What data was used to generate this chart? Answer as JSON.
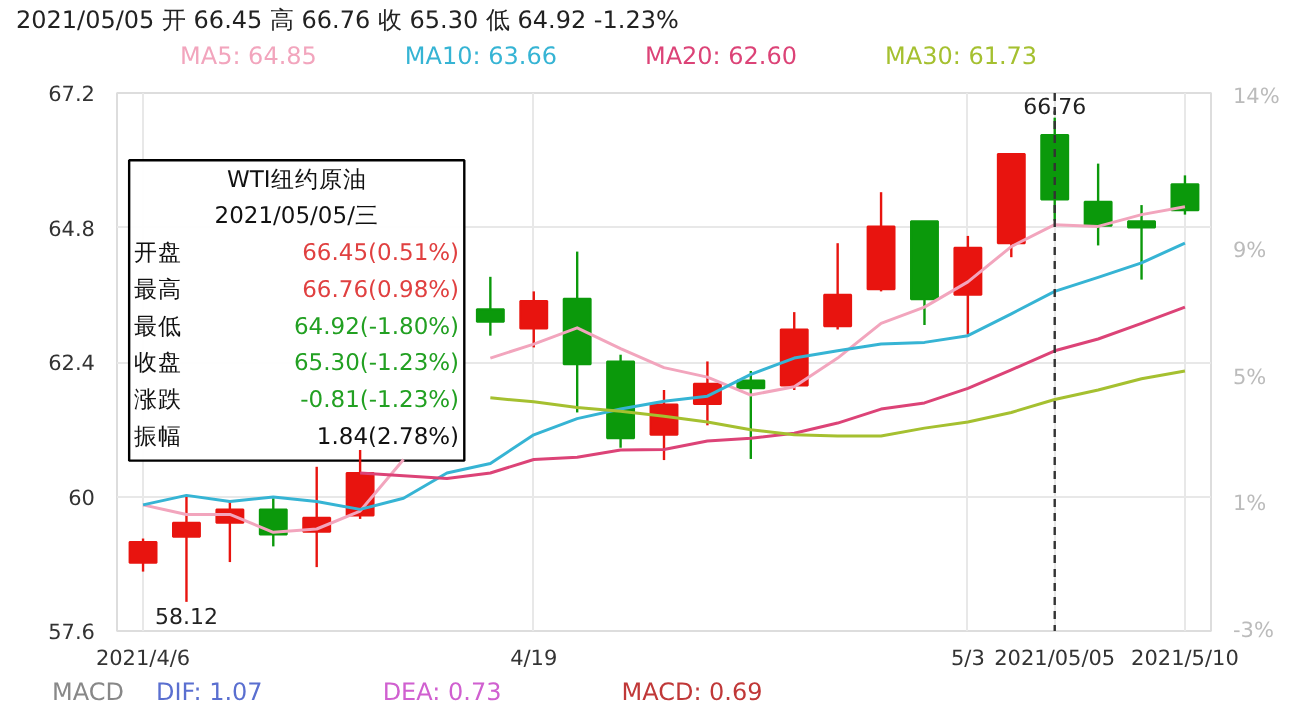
{
  "chart_data": {
    "type": "candlestick",
    "title": "2021/05/05 开 66.45 高 66.76 收 65.30 低 64.92 -1.23%",
    "categories": [
      "2021/4/6",
      null,
      null,
      null,
      null,
      null,
      null,
      null,
      null,
      "4/19",
      null,
      null,
      null,
      null,
      null,
      null,
      null,
      null,
      null,
      "5/3",
      null,
      "2021/05/05",
      null,
      null,
      "2021/5/10"
    ],
    "ohlc": [
      [
        58.82,
        59.25,
        58.66,
        59.19
      ],
      [
        59.28,
        60.02,
        58.12,
        59.53
      ],
      [
        59.53,
        59.91,
        58.83,
        59.77
      ],
      [
        59.77,
        59.97,
        59.11,
        59.32
      ],
      [
        59.37,
        60.53,
        58.74,
        59.62
      ],
      [
        59.66,
        60.83,
        59.6,
        60.42
      ],
      null,
      null,
      [
        63.34,
        63.92,
        62.87,
        63.12
      ],
      [
        63.0,
        63.66,
        62.66,
        63.49
      ],
      [
        63.53,
        64.37,
        61.5,
        62.36
      ],
      [
        62.41,
        62.53,
        60.87,
        61.04
      ],
      [
        61.1,
        61.9,
        60.65,
        61.64
      ],
      [
        61.65,
        62.41,
        61.27,
        62.01
      ],
      [
        62.07,
        62.24,
        60.67,
        61.93
      ],
      [
        61.98,
        63.29,
        61.9,
        62.98
      ],
      [
        63.04,
        64.52,
        62.98,
        63.6
      ],
      [
        63.7,
        65.43,
        63.66,
        64.82
      ],
      [
        64.91,
        64.91,
        63.06,
        63.52
      ],
      [
        63.6,
        64.65,
        62.89,
        64.44
      ],
      [
        64.52,
        66.11,
        64.27,
        66.11
      ],
      [
        66.45,
        66.76,
        64.92,
        65.3
      ],
      [
        65.26,
        65.94,
        64.48,
        64.83
      ],
      [
        64.91,
        65.2,
        63.87,
        64.8
      ],
      [
        65.57,
        65.73,
        65.03,
        65.11
      ]
    ],
    "colors": [
      "#e8140f",
      "#e8140f",
      "#e8140f",
      "#0b990b",
      "#e8140f",
      "#e8140f",
      "#e8140f",
      "#e8140f",
      "#0b990b",
      "#e8140f",
      "#0b990b",
      "#0b990b",
      "#e8140f",
      "#e8140f",
      "#0b990b",
      "#e8140f",
      "#e8140f",
      "#e8140f",
      "#0b990b",
      "#e8140f",
      "#e8140f",
      "#0b990b",
      "#0b990b",
      "#0b990b",
      "#0b990b"
    ],
    "series": [
      {
        "name": "MA5: 64.85",
        "type": "line",
        "color": "#f2a5bd",
        "values": [
          59.85,
          59.68,
          59.68,
          59.36,
          59.42,
          59.74,
          60.66,
          null,
          62.47,
          62.72,
          63.01,
          62.64,
          62.3,
          62.13,
          61.81,
          61.96,
          62.47,
          63.09,
          63.38,
          63.83,
          64.46,
          64.85,
          64.82,
          65.03,
          65.17
        ]
      },
      {
        "name": "MA10: 63.66",
        "type": "line",
        "color": "#36b4d4",
        "values": [
          59.85,
          60.02,
          59.91,
          59.99,
          59.91,
          59.77,
          59.97,
          60.42,
          60.59,
          61.1,
          61.39,
          61.56,
          61.7,
          61.79,
          62.18,
          62.47,
          62.6,
          62.72,
          62.75,
          62.87,
          63.26,
          63.66,
          63.91,
          64.17,
          64.52
        ]
      },
      {
        "name": "MA20: 62.60",
        "type": "line",
        "color": "#dc4377",
        "values": [
          null,
          null,
          null,
          null,
          null,
          60.42,
          60.37,
          60.32,
          60.42,
          60.66,
          60.7,
          60.83,
          60.84,
          60.99,
          61.04,
          61.13,
          61.31,
          61.56,
          61.67,
          61.93,
          62.26,
          62.6,
          62.81,
          63.09,
          63.38
        ]
      },
      {
        "name": "MA30: 61.73",
        "type": "line",
        "color": "#a5c030",
        "values": [
          null,
          null,
          null,
          null,
          null,
          null,
          null,
          null,
          61.76,
          61.69,
          61.59,
          61.52,
          61.43,
          61.33,
          61.19,
          61.1,
          61.08,
          61.08,
          61.22,
          61.33,
          61.5,
          61.73,
          61.9,
          62.1,
          62.24
        ]
      }
    ],
    "ylim": [
      57.6,
      67.2
    ],
    "yticks": [
      57.6,
      60,
      62.4,
      64.8,
      67.2
    ],
    "y2lim": [
      -3,
      14
    ],
    "y2ticks": [
      {
        "value": -3,
        "label": "-3%"
      },
      {
        "value": 1,
        "label": "1%"
      },
      {
        "value": 5,
        "label": "5%"
      },
      {
        "value": 9,
        "label": "9%"
      },
      {
        "value": 14,
        "label": "14%"
      }
    ],
    "ref_lines": [
      {
        "axis": "x",
        "value": "2021/05/05",
        "color": "#333333",
        "line_style": "dashed"
      }
    ],
    "grid": true,
    "legend": "top",
    "annotations": [
      "WTI纽约原油",
      "2021/05/05/三",
      "开盘",
      "66.45(0.51%)",
      "最高",
      "66.76(0.98%)",
      "最低",
      "64.92(-1.80%)",
      "收盘",
      "65.30(-1.23%)",
      "涨跌",
      "-0.81(-1.23%)",
      "振幅",
      "1.84(2.78%)",
      "MACD",
      "DIF: 1.07",
      "DEA: 0.73",
      "MACD: 0.69",
      {
        "text": "66.76",
        "x": "2021/05/05",
        "y": 66.76
      },
      {
        "text": "58.12",
        "y": 58.12
      }
    ]
  }
}
